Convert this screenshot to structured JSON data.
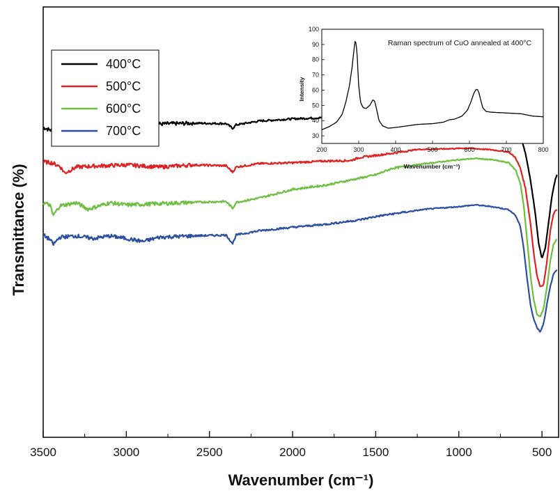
{
  "chart_data": [
    {
      "type": "line",
      "title": "",
      "xlabel": "Wavenumber (cm⁻¹)",
      "ylabel": "Transmittance (%)",
      "xlim": [
        3500,
        400
      ],
      "x_reversed": true,
      "y_ticks_shown": false,
      "x_ticks": [
        3500,
        3000,
        2500,
        2000,
        1500,
        1000,
        500
      ],
      "x_tick_labels": [
        "3500",
        "3000",
        "2500",
        "2000",
        "1500",
        "1000",
        "500"
      ],
      "legend_position": "top-left",
      "grid": false,
      "series": [
        {
          "name": "400°C",
          "color": "#000000",
          "x": [
            3500,
            3450,
            3400,
            3350,
            3300,
            3200,
            3000,
            2800,
            2600,
            2400,
            2360,
            2340,
            2200,
            2000,
            1800,
            1650,
            1600,
            1400,
            1250,
            1100,
            950,
            800,
            700,
            660,
            630,
            600,
            570,
            540,
            520,
            500,
            480,
            460,
            440,
            420,
            410
          ],
          "values": [
            72,
            71.3,
            71.6,
            71.2,
            71.7,
            72.2,
            72.6,
            72.8,
            73,
            72.9,
            71.8,
            72.6,
            73.5,
            74,
            74.3,
            74,
            74.5,
            75,
            75.6,
            75.2,
            75.3,
            74.8,
            74.2,
            73,
            70.5,
            66,
            60,
            52,
            45,
            41.5,
            44,
            50,
            56,
            60,
            61
          ]
        },
        {
          "name": "500°C",
          "color": "#e02020",
          "x": [
            3500,
            3450,
            3400,
            3370,
            3300,
            3200,
            3000,
            2800,
            2600,
            2400,
            2360,
            2340,
            2200,
            2000,
            1800,
            1650,
            1600,
            1400,
            1250,
            1100,
            950,
            800,
            700,
            660,
            630,
            600,
            570,
            550,
            530,
            510,
            490,
            470,
            450,
            430,
            410
          ],
          "values": [
            64,
            63.8,
            63,
            61.4,
            62.8,
            63,
            63.3,
            62.8,
            63.3,
            63.1,
            61.6,
            62.8,
            63.6,
            63.8,
            64.2,
            64.3,
            65,
            66,
            66.9,
            67,
            67.2,
            66.8,
            66.3,
            65,
            62.5,
            58,
            50,
            43,
            37.5,
            35,
            35.5,
            41,
            48,
            52,
            53
          ]
        },
        {
          "name": "600°C",
          "color": "#6cbf3e",
          "x": [
            3500,
            3460,
            3440,
            3400,
            3300,
            3230,
            3100,
            3000,
            2800,
            2600,
            2400,
            2360,
            2340,
            2200,
            2000,
            1800,
            1600,
            1500,
            1400,
            1200,
            1000,
            900,
            800,
            700,
            660,
            630,
            610,
            590,
            570,
            550,
            530,
            510,
            490,
            470,
            450,
            430,
            410
          ],
          "values": [
            54.5,
            54,
            51.5,
            53.8,
            54.5,
            53,
            54.5,
            54,
            54.3,
            54.6,
            54.8,
            53.2,
            54.6,
            55.6,
            57.6,
            58.6,
            60.2,
            61,
            62.5,
            63.6,
            64.5,
            64.8,
            64.5,
            63.8,
            62.2,
            59,
            54,
            46,
            38,
            32,
            28.5,
            28,
            30,
            35,
            41,
            45,
            46
          ]
        },
        {
          "name": "700°C",
          "color": "#2b4ea2",
          "x": [
            3500,
            3460,
            3440,
            3400,
            3300,
            3200,
            3100,
            3000,
            2900,
            2800,
            2600,
            2400,
            2360,
            2340,
            2200,
            2000,
            1800,
            1600,
            1500,
            1400,
            1200,
            1000,
            900,
            800,
            700,
            660,
            630,
            610,
            590,
            570,
            550,
            530,
            510,
            490,
            470,
            450,
            430,
            410
          ],
          "values": [
            47,
            46,
            44.8,
            46.5,
            46.8,
            46.2,
            46.8,
            46.2,
            45.5,
            46.5,
            46.8,
            47,
            45,
            47,
            48,
            48.8,
            49.5,
            50.5,
            51.3,
            51.9,
            53,
            53.6,
            54,
            53.6,
            52.9,
            51.6,
            49,
            44,
            37,
            31,
            27.5,
            25.5,
            24.5,
            26.5,
            31,
            35,
            38,
            39
          ]
        }
      ]
    },
    {
      "type": "line",
      "title": "Raman spectrum of CuO annealed at 400°C",
      "xlabel": "Wavenumber (cm⁻¹)",
      "ylabel": "Intensity",
      "xlim": [
        200,
        800
      ],
      "ylim": [
        25,
        100
      ],
      "x_ticks": [
        200,
        300,
        400,
        500,
        600,
        700,
        800
      ],
      "y_ticks": [
        30,
        40,
        50,
        60,
        70,
        80,
        90,
        100
      ],
      "grid": false,
      "series": [
        {
          "color": "#000000",
          "x": [
            200,
            220,
            240,
            255,
            265,
            275,
            282,
            287,
            290,
            293,
            296,
            300,
            305,
            312,
            320,
            330,
            338,
            343,
            348,
            355,
            365,
            380,
            400,
            430,
            460,
            500,
            530,
            545,
            560,
            580,
            595,
            605,
            612,
            618,
            622,
            626,
            630,
            636,
            645,
            660,
            700,
            740,
            770,
            800
          ],
          "values": [
            34,
            36,
            39,
            44,
            52,
            63,
            75,
            86,
            92,
            91,
            82,
            63,
            52,
            48.5,
            48,
            50,
            53.5,
            53,
            48,
            40,
            36.5,
            35,
            35.5,
            36.5,
            37.5,
            38,
            39,
            40.5,
            41,
            43,
            47,
            53,
            58,
            60.5,
            60.3,
            58,
            54,
            48.5,
            46,
            45.5,
            45,
            44.5,
            43,
            42.5
          ]
        }
      ]
    }
  ]
}
